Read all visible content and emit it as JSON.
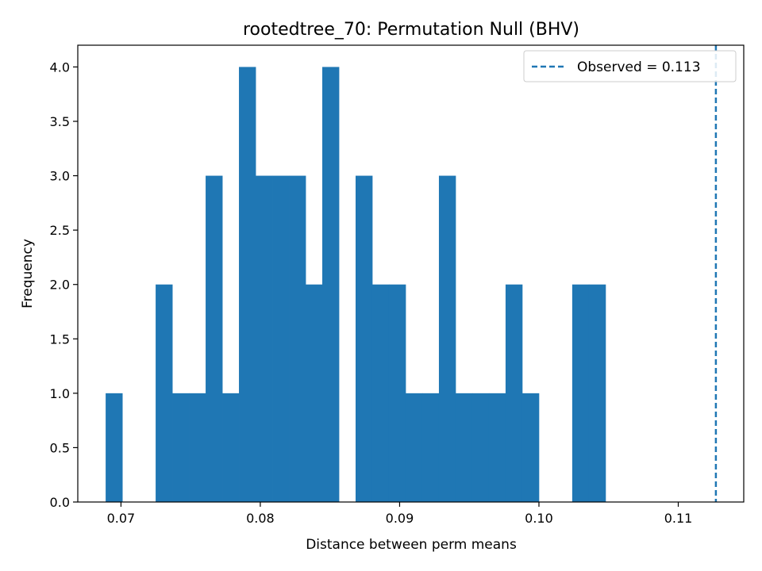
{
  "chart_data": {
    "type": "bar",
    "title": "rootedtree_70: Permutation Null (BHV)",
    "xlabel": "Distance between perm means",
    "ylabel": "Frequency",
    "xlim": [
      0.0669,
      0.1147
    ],
    "ylim": [
      0,
      4.2
    ],
    "bin_edges_start": 0.0689,
    "bin_width": 0.001196,
    "frequencies": [
      1,
      0,
      0,
      2,
      1,
      1,
      3,
      1,
      4,
      3,
      3,
      3,
      2,
      4,
      0,
      3,
      2,
      2,
      1,
      1,
      3,
      1,
      1,
      1,
      2,
      1,
      0,
      0,
      2,
      2
    ],
    "bar_color": "#1f77b4",
    "x_ticks": [
      {
        "value": 0.07,
        "label": "0.07"
      },
      {
        "value": 0.08,
        "label": "0.08"
      },
      {
        "value": 0.09,
        "label": "0.09"
      },
      {
        "value": 0.1,
        "label": "0.10"
      },
      {
        "value": 0.11,
        "label": "0.11"
      }
    ],
    "y_ticks": [
      {
        "value": 0.0,
        "label": "0.0"
      },
      {
        "value": 0.5,
        "label": "0.5"
      },
      {
        "value": 1.0,
        "label": "1.0"
      },
      {
        "value": 1.5,
        "label": "1.5"
      },
      {
        "value": 2.0,
        "label": "2.0"
      },
      {
        "value": 2.5,
        "label": "2.5"
      },
      {
        "value": 3.0,
        "label": "3.0"
      },
      {
        "value": 3.5,
        "label": "3.5"
      },
      {
        "value": 4.0,
        "label": "4.0"
      }
    ],
    "observed": {
      "value": 0.1127,
      "label": "Observed = 0.113",
      "color": "#1f77b4",
      "style": "dashed"
    },
    "legend_position": "top-right",
    "grid": false
  }
}
